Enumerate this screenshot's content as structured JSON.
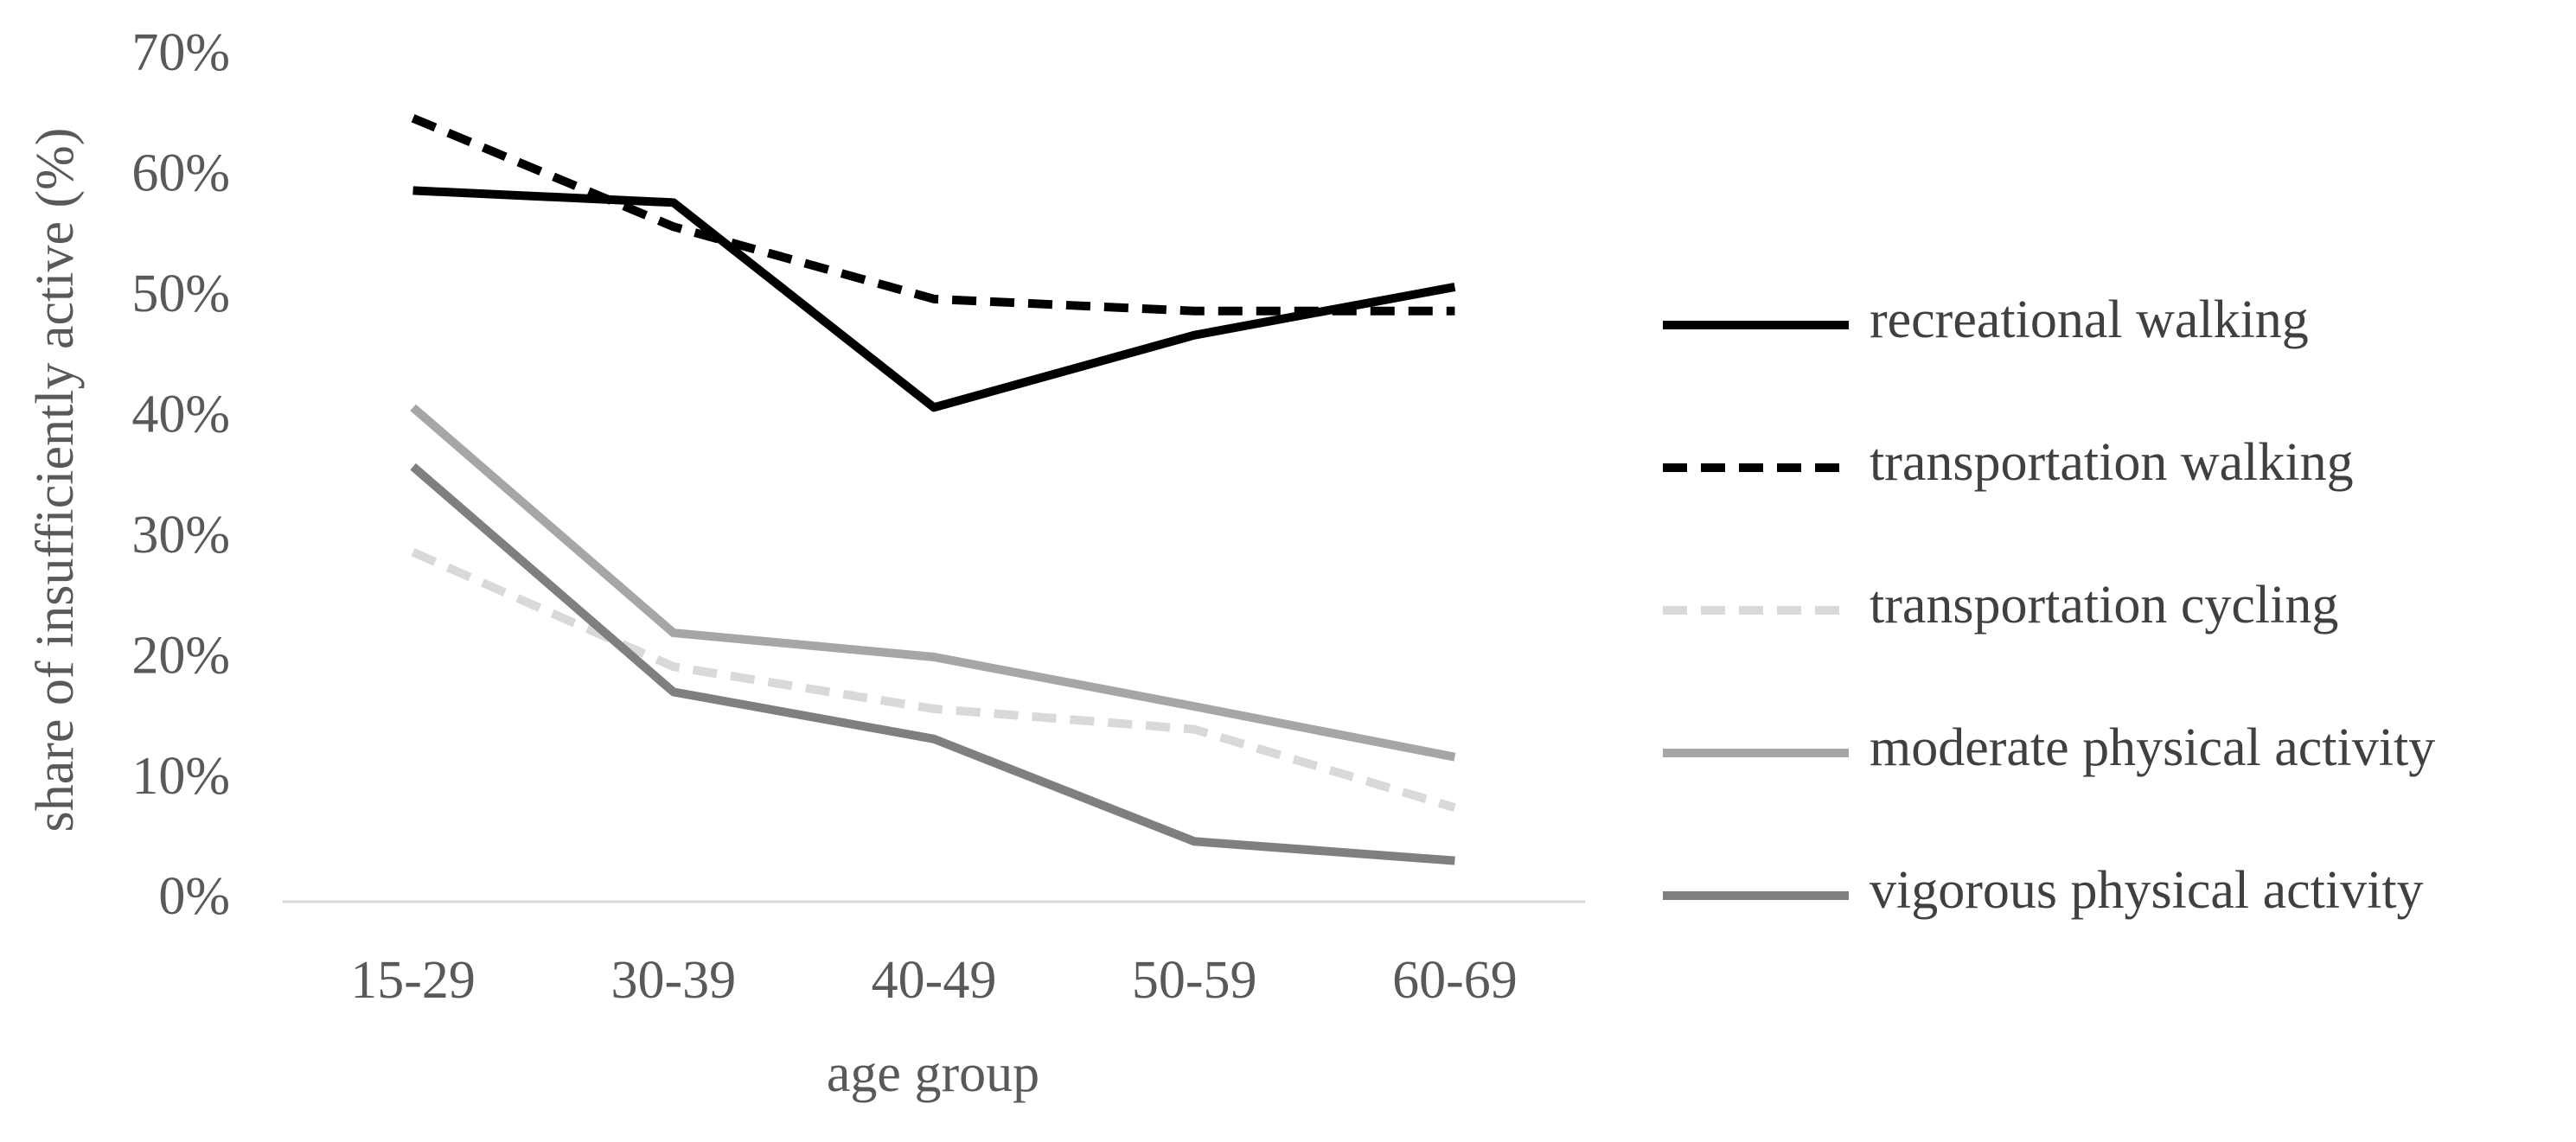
{
  "chart_data": {
    "type": "line",
    "x_label": "age group",
    "y_label": "share of insufficiently  active (%)",
    "categories": [
      "15-29",
      "30-39",
      "40-49",
      "50-59",
      "60-69"
    ],
    "ylim": [
      0,
      70
    ],
    "yticks": [
      {
        "value": 0,
        "label": "0%"
      },
      {
        "value": 10,
        "label": "10%"
      },
      {
        "value": 20,
        "label": "20%"
      },
      {
        "value": 30,
        "label": "30%"
      },
      {
        "value": 40,
        "label": "40%"
      },
      {
        "value": 50,
        "label": "50%"
      },
      {
        "value": 60,
        "label": "60%"
      },
      {
        "value": 70,
        "label": "70%"
      }
    ],
    "grid": false,
    "legend": "right",
    "series": [
      {
        "name": "recreational walking",
        "color": "#000000",
        "dashed": false,
        "values": [
          59,
          58,
          41,
          47,
          51
        ]
      },
      {
        "name": "transportation walking",
        "color": "#000000",
        "dashed": true,
        "values": [
          65,
          56,
          50,
          49,
          49
        ]
      },
      {
        "name": "transportation cycling",
        "color": "#d9d9d9",
        "dashed": true,
        "values": [
          29,
          19.5,
          16,
          14.3,
          7.8
        ]
      },
      {
        "name": "moderate physical activity",
        "color": "#a6a6a6",
        "dashed": false,
        "values": [
          41,
          22.3,
          20.3,
          16.2,
          12
        ]
      },
      {
        "name": "vigorous physical activity",
        "color": "#7f7f7f",
        "dashed": false,
        "values": [
          36.1,
          17.4,
          13.5,
          5,
          3.4
        ]
      }
    ]
  }
}
